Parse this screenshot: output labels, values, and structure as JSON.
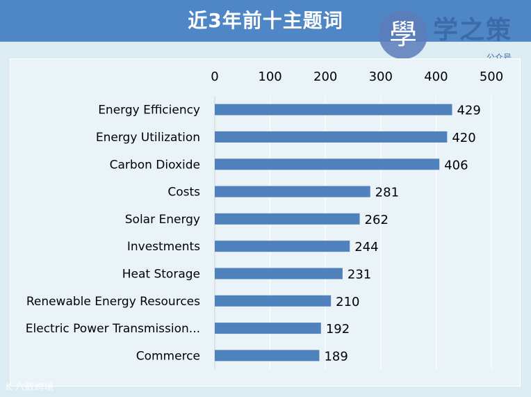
{
  "header": {
    "title": "近3年前十主题词",
    "logo_text": "学之策",
    "logo_glyph": "學",
    "logo_sub": "公众号"
  },
  "watermark": "K 六数跨境",
  "colors": {
    "title_bar": "#4f86c6",
    "bar": "#4f81bd",
    "background": "#dcecf3",
    "grid": "#ffffff"
  },
  "chart_data": {
    "type": "bar",
    "orientation": "horizontal",
    "categories": [
      "Energy Efficiency",
      "Energy Utilization",
      "Carbon Dioxide",
      "Costs",
      "Solar Energy",
      "Investments",
      "Heat Storage",
      "Renewable Energy Resources",
      "Electric Power Transmission...",
      "Commerce"
    ],
    "values": [
      429,
      420,
      406,
      281,
      262,
      244,
      231,
      210,
      192,
      189
    ],
    "xlim": [
      0,
      500
    ],
    "x_ticks": [
      0,
      100,
      200,
      300,
      400,
      500
    ],
    "x_axis_position": "top",
    "grid": true,
    "data_labels": true
  }
}
